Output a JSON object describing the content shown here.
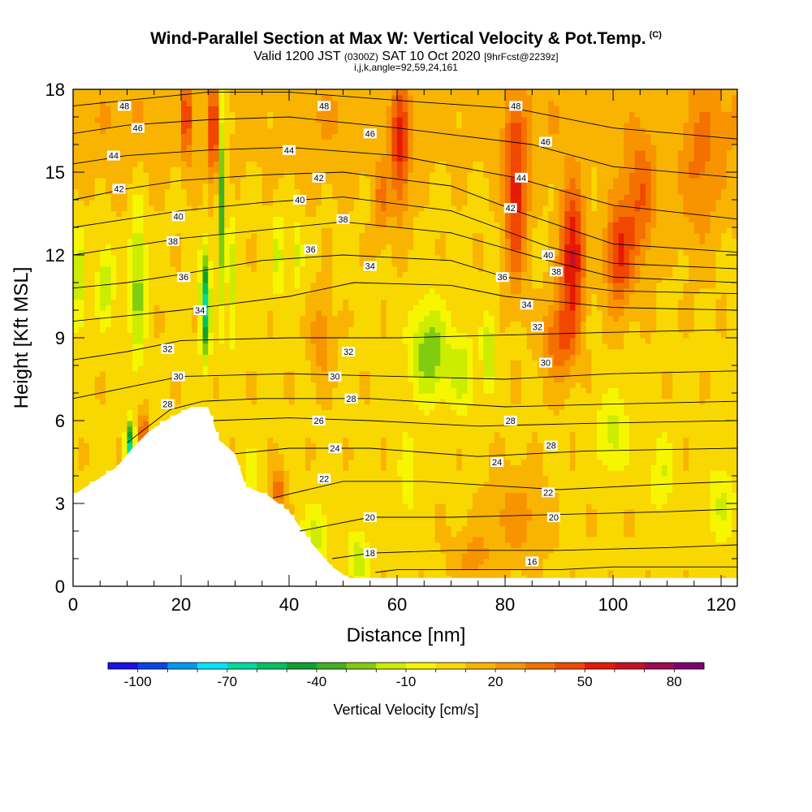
{
  "header": {
    "title": "Wind-Parallel Section at Max W: Vertical Velocity & Pot.Temp.",
    "copyright_mark": "(C)",
    "subtitle_main": "Valid 1200 JST",
    "subtitle_utc": "(0300Z)",
    "subtitle_date": "SAT 10 Oct 2020",
    "subtitle_fcst": "[9hrFcst@2239z]",
    "params": "i,j,k,angle=92,59,24,161"
  },
  "chart_data": {
    "type": "heatmap",
    "title": "Wind-Parallel Section at Max W: Vertical Velocity & Pot.Temp.",
    "xlabel": "Distance [nm]",
    "ylabel": "Height [Kft MSL]",
    "xlim": [
      0,
      123
    ],
    "ylim": [
      0,
      18
    ],
    "x_ticks": [
      0,
      20,
      40,
      60,
      80,
      100,
      120
    ],
    "y_ticks": [
      0,
      3,
      6,
      9,
      12,
      15,
      18
    ],
    "colorbar": {
      "label": "Vertical Velocity [cm/s]",
      "tick_labels": [
        "-100",
        "-70",
        "-40",
        "-10",
        "20",
        "50",
        "80"
      ],
      "tick_values": [
        -100,
        -70,
        -40,
        -10,
        20,
        50,
        80
      ],
      "range": [
        -110,
        90
      ],
      "bin_width": 10,
      "colors": [
        "#1a10e6",
        "#0a44e6",
        "#0099f0",
        "#00e5ff",
        "#00d9a0",
        "#00c060",
        "#10a030",
        "#40b020",
        "#80cc10",
        "#ccec00",
        "#f6f600",
        "#f8d800",
        "#f8b400",
        "#f89400",
        "#f47000",
        "#f04800",
        "#e61a00",
        "#c81020",
        "#a00850",
        "#800070"
      ]
    },
    "terrain_profile": [
      {
        "x": 0,
        "z": 3.3
      },
      {
        "x": 4,
        "z": 3.8
      },
      {
        "x": 8,
        "z": 4.3
      },
      {
        "x": 11,
        "z": 5.0
      },
      {
        "x": 14,
        "z": 5.6
      },
      {
        "x": 18,
        "z": 6.1
      },
      {
        "x": 22,
        "z": 6.5
      },
      {
        "x": 25,
        "z": 6.5
      },
      {
        "x": 27,
        "z": 5.3
      },
      {
        "x": 30,
        "z": 4.8
      },
      {
        "x": 32,
        "z": 3.6
      },
      {
        "x": 36,
        "z": 3.3
      },
      {
        "x": 40,
        "z": 2.7
      },
      {
        "x": 44,
        "z": 1.6
      },
      {
        "x": 48,
        "z": 0.7
      },
      {
        "x": 51,
        "z": 0.3
      },
      {
        "x": 55,
        "z": 0.3
      },
      {
        "x": 123,
        "z": 0.3
      }
    ],
    "velocity_features": [
      {
        "x": 12,
        "z": 11.0,
        "sx": 1.5,
        "sz": 3.0,
        "w": -32
      },
      {
        "x": 6,
        "z": 11.0,
        "sx": 1.6,
        "sz": 1.5,
        "w": -25
      },
      {
        "x": 1,
        "z": 11.0,
        "sx": 1.2,
        "sz": 2.0,
        "w": -25
      },
      {
        "x": 24.5,
        "z": 10.2,
        "sx": 0.9,
        "sz": 1.8,
        "w": -72
      },
      {
        "x": 27.5,
        "z": 14.0,
        "sx": 0.7,
        "sz": 4.0,
        "w": -42
      },
      {
        "x": 29.5,
        "z": 11.0,
        "sx": 0.8,
        "sz": 2.5,
        "w": -22
      },
      {
        "x": 10.5,
        "z": 5.0,
        "sx": 0.8,
        "sz": 0.9,
        "w": -75
      },
      {
        "x": 13,
        "z": 5.5,
        "sx": 0.8,
        "sz": 0.8,
        "w": 45
      },
      {
        "x": 26,
        "z": 16.5,
        "sx": 0.8,
        "sz": 2.0,
        "w": 48
      },
      {
        "x": 21,
        "z": 17.0,
        "sx": 1.0,
        "sz": 1.5,
        "w": 40
      },
      {
        "x": 38,
        "z": 12.0,
        "sx": 1.2,
        "sz": 1.5,
        "w": -22
      },
      {
        "x": 41.5,
        "z": 12.0,
        "sx": 1.0,
        "sz": 1.2,
        "w": -22
      },
      {
        "x": 46,
        "z": 9.0,
        "sx": 2.0,
        "sz": 1.5,
        "w": 20
      },
      {
        "x": 33,
        "z": 4.0,
        "sx": 1.5,
        "sz": 1.0,
        "w": -15
      },
      {
        "x": 38,
        "z": 3.5,
        "sx": 1.2,
        "sz": 0.8,
        "w": 30
      },
      {
        "x": 45,
        "z": 1.8,
        "sx": 2.5,
        "sz": 1.2,
        "w": -22
      },
      {
        "x": 53,
        "z": 1.0,
        "sx": 2.0,
        "sz": 1.0,
        "w": -25
      },
      {
        "x": 60.5,
        "z": 16.0,
        "sx": 1.8,
        "sz": 2.5,
        "w": 42
      },
      {
        "x": 57,
        "z": 14.0,
        "sx": 1.5,
        "sz": 1.5,
        "w": 22
      },
      {
        "x": 66,
        "z": 8.5,
        "sx": 3.5,
        "sz": 1.8,
        "w": -36
      },
      {
        "x": 72,
        "z": 7.8,
        "sx": 2.5,
        "sz": 1.5,
        "w": -22
      },
      {
        "x": 77,
        "z": 8.5,
        "sx": 1.2,
        "sz": 1.3,
        "w": -32
      },
      {
        "x": 62,
        "z": 4.0,
        "sx": 1.5,
        "sz": 1.5,
        "w": -18
      },
      {
        "x": 82,
        "z": 14.0,
        "sx": 2.0,
        "sz": 3.0,
        "w": 45
      },
      {
        "x": 92.5,
        "z": 12.0,
        "sx": 2.2,
        "sz": 2.5,
        "w": 55
      },
      {
        "x": 90,
        "z": 9.0,
        "sx": 3.0,
        "sz": 1.5,
        "w": 32
      },
      {
        "x": 101,
        "z": 12.0,
        "sx": 2.5,
        "sz": 2.0,
        "w": 42
      },
      {
        "x": 105,
        "z": 14.0,
        "sx": 3.0,
        "sz": 2.5,
        "w": 30
      },
      {
        "x": 116,
        "z": 15.0,
        "sx": 4.0,
        "sz": 3.0,
        "w": 20
      },
      {
        "x": 100,
        "z": 5.5,
        "sx": 3.0,
        "sz": 1.5,
        "w": -22
      },
      {
        "x": 109,
        "z": 4.0,
        "sx": 2.0,
        "sz": 1.5,
        "w": -18
      },
      {
        "x": 120,
        "z": 3.0,
        "sx": 3.0,
        "sz": 1.5,
        "w": -18
      },
      {
        "x": 82,
        "z": 2.5,
        "sx": 5.0,
        "sz": 1.5,
        "w": 18
      },
      {
        "x": 74,
        "z": 1.0,
        "sx": 4.0,
        "sz": 1.0,
        "w": 15
      }
    ],
    "theta_isentropes": [
      {
        "label": "16",
        "pts": [
          [
            56,
            0.5
          ],
          [
            60,
            0.6
          ],
          [
            70,
            0.6
          ],
          [
            80,
            0.6
          ],
          [
            90,
            0.6
          ],
          [
            100,
            0.7
          ],
          [
            123,
            0.7
          ]
        ]
      },
      {
        "label": "18",
        "pts": [
          [
            48,
            1.0
          ],
          [
            55,
            1.2
          ],
          [
            70,
            1.3
          ],
          [
            90,
            1.3
          ],
          [
            110,
            1.4
          ],
          [
            123,
            1.5
          ]
        ]
      },
      {
        "label": "20",
        "pts": [
          [
            42,
            2.0
          ],
          [
            55,
            2.5
          ],
          [
            70,
            2.5
          ],
          [
            90,
            2.6
          ],
          [
            110,
            2.7
          ],
          [
            123,
            2.8
          ]
        ]
      },
      {
        "label": "22",
        "pts": [
          [
            37,
            3.2
          ],
          [
            50,
            3.8
          ],
          [
            65,
            3.8
          ],
          [
            90,
            3.5
          ],
          [
            110,
            3.7
          ],
          [
            123,
            3.8
          ]
        ]
      },
      {
        "label": "24",
        "pts": [
          [
            30,
            4.8
          ],
          [
            40,
            5.0
          ],
          [
            55,
            5.0
          ],
          [
            75,
            4.7
          ],
          [
            95,
            4.9
          ],
          [
            123,
            5.0
          ]
        ]
      },
      {
        "label": "26",
        "pts": [
          [
            26,
            6.0
          ],
          [
            40,
            6.1
          ],
          [
            55,
            6.0
          ],
          [
            75,
            5.8
          ],
          [
            95,
            5.9
          ],
          [
            123,
            6.0
          ]
        ]
      },
      {
        "label": "28",
        "pts": [
          [
            10,
            5.2
          ],
          [
            18,
            6.4
          ],
          [
            24,
            6.7
          ],
          [
            35,
            6.8
          ],
          [
            55,
            6.8
          ],
          [
            80,
            6.5
          ],
          [
            100,
            6.6
          ],
          [
            123,
            6.7
          ]
        ]
      },
      {
        "label": "30",
        "pts": [
          [
            0,
            6.8
          ],
          [
            10,
            7.2
          ],
          [
            20,
            7.6
          ],
          [
            40,
            7.7
          ],
          [
            60,
            7.6
          ],
          [
            80,
            7.5
          ],
          [
            100,
            7.7
          ],
          [
            123,
            7.8
          ]
        ]
      },
      {
        "label": "32",
        "pts": [
          [
            0,
            8.2
          ],
          [
            10,
            8.5
          ],
          [
            20,
            8.9
          ],
          [
            40,
            9.0
          ],
          [
            60,
            9.0
          ],
          [
            80,
            9.1
          ],
          [
            100,
            9.2
          ],
          [
            123,
            9.3
          ]
        ]
      },
      {
        "label": "34",
        "pts": [
          [
            0,
            9.6
          ],
          [
            10,
            9.8
          ],
          [
            20,
            10.0
          ],
          [
            40,
            10.5
          ],
          [
            52,
            11.0
          ],
          [
            70,
            10.9
          ],
          [
            80,
            10.5
          ],
          [
            100,
            10.1
          ],
          [
            123,
            10.0
          ]
        ]
      },
      {
        "label": "36",
        "pts": [
          [
            0,
            10.8
          ],
          [
            10,
            11.0
          ],
          [
            20,
            11.3
          ],
          [
            35,
            11.8
          ],
          [
            50,
            12.0
          ],
          [
            70,
            11.8
          ],
          [
            80,
            11.2
          ],
          [
            100,
            10.7
          ],
          [
            123,
            10.6
          ]
        ]
      },
      {
        "label": "38",
        "pts": [
          [
            0,
            12.0
          ],
          [
            10,
            12.3
          ],
          [
            20,
            12.6
          ],
          [
            35,
            12.9
          ],
          [
            50,
            13.2
          ],
          [
            70,
            12.8
          ],
          [
            88,
            11.8
          ],
          [
            100,
            11.2
          ],
          [
            123,
            11.0
          ]
        ]
      },
      {
        "label": "40",
        "pts": [
          [
            0,
            13.0
          ],
          [
            10,
            13.3
          ],
          [
            20,
            13.6
          ],
          [
            35,
            13.9
          ],
          [
            50,
            14.1
          ],
          [
            70,
            13.6
          ],
          [
            88,
            12.3
          ],
          [
            100,
            11.7
          ],
          [
            123,
            11.5
          ]
        ]
      },
      {
        "label": "42",
        "pts": [
          [
            0,
            14.0
          ],
          [
            10,
            14.4
          ],
          [
            20,
            14.7
          ],
          [
            35,
            14.9
          ],
          [
            50,
            15.0
          ],
          [
            70,
            14.5
          ],
          [
            82,
            13.6
          ],
          [
            100,
            12.4
          ],
          [
            123,
            12.1
          ]
        ]
      },
      {
        "label": "44",
        "pts": [
          [
            0,
            15.3
          ],
          [
            10,
            15.6
          ],
          [
            25,
            15.8
          ],
          [
            40,
            15.9
          ],
          [
            60,
            15.6
          ],
          [
            82,
            14.8
          ],
          [
            100,
            13.8
          ],
          [
            123,
            13.3
          ]
        ]
      },
      {
        "label": "46",
        "pts": [
          [
            0,
            16.4
          ],
          [
            10,
            16.7
          ],
          [
            25,
            16.9
          ],
          [
            40,
            17.0
          ],
          [
            60,
            16.6
          ],
          [
            85,
            16.0
          ],
          [
            100,
            15.2
          ],
          [
            123,
            14.8
          ]
        ]
      },
      {
        "label": "48",
        "pts": [
          [
            0,
            17.4
          ],
          [
            10,
            17.6
          ],
          [
            25,
            17.9
          ],
          [
            40,
            17.9
          ],
          [
            60,
            17.6
          ],
          [
            82,
            17.3
          ],
          [
            100,
            16.6
          ],
          [
            123,
            16.2
          ]
        ]
      }
    ],
    "isentrope_labels": [
      {
        "text": "48",
        "x": 9.5,
        "z": 17.4
      },
      {
        "text": "46",
        "x": 12,
        "z": 16.6
      },
      {
        "text": "44",
        "x": 7.5,
        "z": 15.6
      },
      {
        "text": "42",
        "x": 8.5,
        "z": 14.4
      },
      {
        "text": "40",
        "x": 19.5,
        "z": 13.4
      },
      {
        "text": "38",
        "x": 18.5,
        "z": 12.5
      },
      {
        "text": "36",
        "x": 20.5,
        "z": 11.2
      },
      {
        "text": "34",
        "x": 23.5,
        "z": 10.0
      },
      {
        "text": "32",
        "x": 17.5,
        "z": 8.6
      },
      {
        "text": "30",
        "x": 19.5,
        "z": 7.6
      },
      {
        "text": "28",
        "x": 17.5,
        "z": 6.6
      },
      {
        "text": "48",
        "x": 46.5,
        "z": 17.4
      },
      {
        "text": "46",
        "x": 55,
        "z": 16.4
      },
      {
        "text": "44",
        "x": 40,
        "z": 15.8
      },
      {
        "text": "42",
        "x": 45.5,
        "z": 14.8
      },
      {
        "text": "40",
        "x": 42,
        "z": 14.0
      },
      {
        "text": "38",
        "x": 50,
        "z": 13.3
      },
      {
        "text": "36",
        "x": 44,
        "z": 12.2
      },
      {
        "text": "34",
        "x": 55,
        "z": 11.6
      },
      {
        "text": "32",
        "x": 51,
        "z": 8.5
      },
      {
        "text": "30",
        "x": 48.5,
        "z": 7.6
      },
      {
        "text": "28",
        "x": 51.5,
        "z": 6.8
      },
      {
        "text": "26",
        "x": 45.5,
        "z": 6.0
      },
      {
        "text": "24",
        "x": 48.5,
        "z": 5.0
      },
      {
        "text": "22",
        "x": 46.5,
        "z": 3.9
      },
      {
        "text": "20",
        "x": 55,
        "z": 2.5
      },
      {
        "text": "18",
        "x": 55,
        "z": 1.2
      },
      {
        "text": "48",
        "x": 82,
        "z": 17.4
      },
      {
        "text": "46",
        "x": 87.5,
        "z": 16.1
      },
      {
        "text": "44",
        "x": 83,
        "z": 14.8
      },
      {
        "text": "42",
        "x": 81,
        "z": 13.7
      },
      {
        "text": "40",
        "x": 88,
        "z": 12.0
      },
      {
        "text": "38",
        "x": 89.5,
        "z": 11.4
      },
      {
        "text": "36",
        "x": 79.5,
        "z": 11.2
      },
      {
        "text": "34",
        "x": 84,
        "z": 10.2
      },
      {
        "text": "32",
        "x": 86,
        "z": 9.4
      },
      {
        "text": "30",
        "x": 87.5,
        "z": 8.1
      },
      {
        "text": "28",
        "x": 81,
        "z": 6.0
      },
      {
        "text": "28",
        "x": 88.5,
        "z": 5.1
      },
      {
        "text": "24",
        "x": 78.5,
        "z": 4.5
      },
      {
        "text": "22",
        "x": 88,
        "z": 3.4
      },
      {
        "text": "20",
        "x": 89,
        "z": 2.5
      },
      {
        "text": "16",
        "x": 85,
        "z": 0.9
      }
    ]
  }
}
